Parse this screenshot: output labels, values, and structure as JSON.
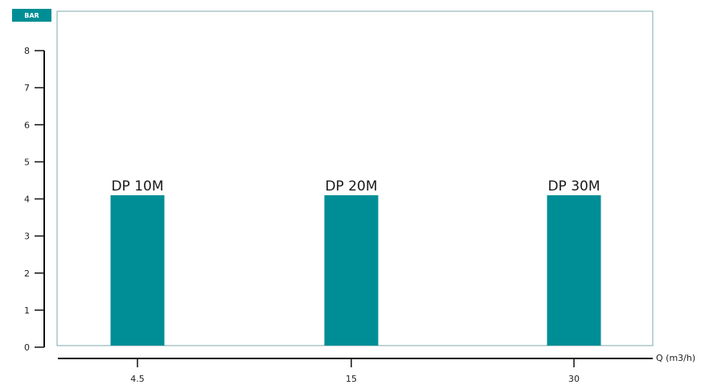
{
  "colors": {
    "bar": "#008e96",
    "badge": "#008e96",
    "frame": "#7fa8ac",
    "axis": "#111111"
  },
  "chart_data": {
    "type": "bar",
    "unit_badge": "BAR",
    "xlabel": "Q (m3/h)",
    "ylabel": "",
    "title": "",
    "ylim": [
      0,
      8
    ],
    "y_ticks": [
      "0",
      "1",
      "2",
      "3",
      "4",
      "5",
      "6",
      "7",
      "8"
    ],
    "categories": [
      "4.5",
      "15",
      "30"
    ],
    "values": [
      4.1,
      4.1,
      4.1
    ],
    "bar_labels": [
      "DP 10M",
      "DP 20M",
      "DP 30M"
    ],
    "grid": false
  }
}
